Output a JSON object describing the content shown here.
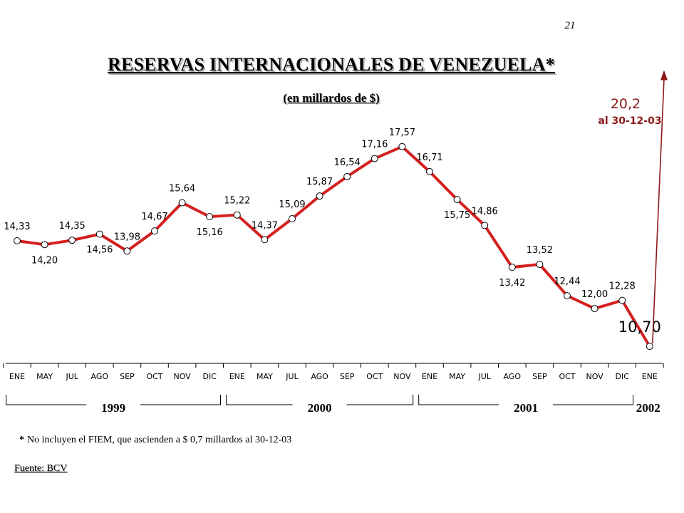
{
  "page_number": "21",
  "title": "RESERVAS INTERNACIONALES DE VENEZUELA*",
  "subtitle": "(en millardos de $)",
  "footnote": {
    "marker": "*",
    "text": "No incluyen el FIEM, que ascienden a $ 0,7 millardos al 30-12-03"
  },
  "source": "Fuente: BCV",
  "colors": {
    "line": "#d42020",
    "marker_fill": "#ffffff",
    "marker_stroke": "#000000",
    "annotation": "#8b1a1a"
  },
  "chart_data": {
    "type": "line",
    "title": "RESERVAS INTERNACIONALES DE VENEZUELA*",
    "subtitle": "(en millardos de $)",
    "ylabel": "",
    "xlabel": "",
    "grid": false,
    "categories": [
      "ENE",
      "MAY",
      "JUL",
      "AGO",
      "SEP",
      "OCT",
      "NOV",
      "DIC",
      "ENE",
      "MAY",
      "JUL",
      "AGO",
      "SEP",
      "OCT",
      "NOV",
      "ENE",
      "MAY",
      "JUL",
      "AGO",
      "SEP",
      "OCT",
      "NOV",
      "DIC",
      "ENE"
    ],
    "values": [
      14.33,
      14.2,
      14.35,
      14.56,
      13.98,
      14.67,
      15.64,
      15.16,
      15.22,
      14.37,
      15.09,
      15.87,
      16.54,
      17.16,
      17.57,
      16.71,
      15.75,
      14.86,
      13.42,
      13.52,
      12.44,
      12.0,
      12.28,
      10.7
    ],
    "labels": [
      "14,33",
      "14,20",
      "14,35",
      "14,56",
      "13,98",
      "14,67",
      "15,64",
      "15,16",
      "15,22",
      "14,37",
      "15,09",
      "15,87",
      "16,54",
      "17,16",
      "17,57",
      "16,71",
      "15,75",
      "14,86",
      "13,42",
      "13,52",
      "12,44",
      "12,00",
      "12,28",
      "10,70"
    ],
    "label_pos": [
      "above",
      "below",
      "above",
      "below",
      "above",
      "above",
      "above",
      "below",
      "above",
      "above",
      "above",
      "above",
      "above",
      "above",
      "above",
      "above",
      "below",
      "above",
      "below",
      "above",
      "above",
      "above",
      "above",
      "above"
    ],
    "years": [
      {
        "label": "1999",
        "from": 0,
        "to": 7
      },
      {
        "label": "2000",
        "from": 8,
        "to": 14
      },
      {
        "label": "2001",
        "from": 15,
        "to": 22
      },
      {
        "label": "2002",
        "from": 23,
        "to": 23
      }
    ],
    "annotation": {
      "value": 20.2,
      "value_label": "20,2",
      "date_label": "al 30-12-03"
    }
  }
}
